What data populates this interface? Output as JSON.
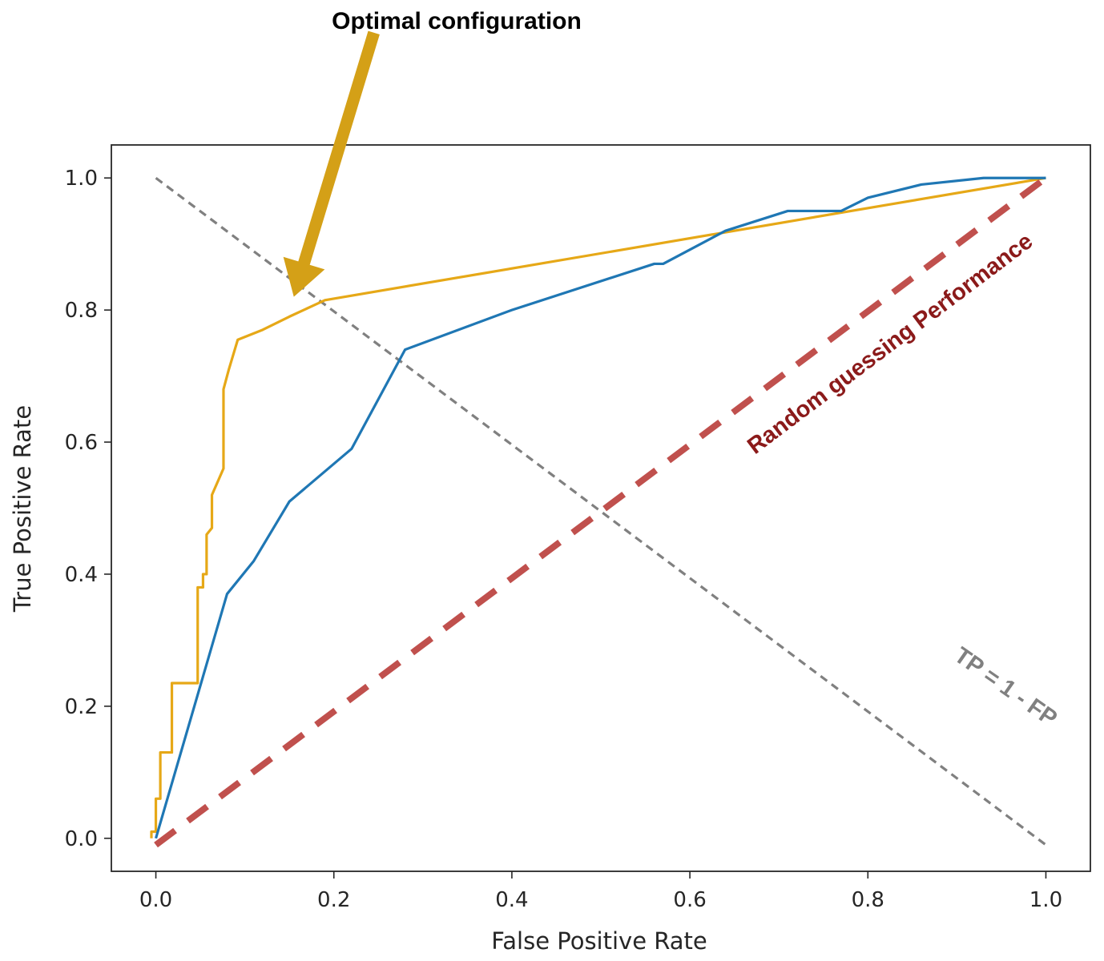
{
  "chart_data": {
    "type": "line",
    "title": "",
    "xlabel": "False Positive Rate",
    "ylabel": "True Positive Rate",
    "xlim": [
      -0.05,
      1.05
    ],
    "ylim": [
      -0.05,
      1.05
    ],
    "xticks": [
      "0.0",
      "0.2",
      "0.4",
      "0.6",
      "0.8",
      "1.0"
    ],
    "yticks": [
      "0.0",
      "0.2",
      "0.4",
      "0.6",
      "0.8",
      "1.0"
    ],
    "series": [
      {
        "name": "blue-roc",
        "color": "#1f77b4",
        "x": [
          0.0,
          0.08,
          0.11,
          0.15,
          0.22,
          0.28,
          0.4,
          0.56,
          0.57,
          0.64,
          0.71,
          0.77,
          0.8,
          0.86,
          0.93,
          1.0
        ],
        "y": [
          0.0,
          0.37,
          0.42,
          0.51,
          0.59,
          0.74,
          0.8,
          0.87,
          0.87,
          0.92,
          0.95,
          0.95,
          0.97,
          0.99,
          1.0,
          1.0
        ]
      },
      {
        "name": "orange-roc",
        "color": "#e6a817",
        "x": [
          -0.005,
          -0.005,
          0.0,
          0.0,
          0.005,
          0.005,
          0.01,
          0.01,
          0.018,
          0.018,
          0.047,
          0.047,
          0.053,
          0.053,
          0.057,
          0.057,
          0.063,
          0.063,
          0.076,
          0.076,
          0.082,
          0.092,
          0.12,
          0.15,
          0.19,
          1.0
        ],
        "y": [
          0.0,
          0.01,
          0.01,
          0.06,
          0.06,
          0.13,
          0.13,
          0.13,
          0.13,
          0.235,
          0.235,
          0.38,
          0.38,
          0.4,
          0.4,
          0.46,
          0.47,
          0.52,
          0.56,
          0.68,
          0.71,
          0.755,
          0.77,
          0.79,
          0.815,
          1.0
        ]
      },
      {
        "name": "random-guessing",
        "color": "#c0504d",
        "dash": "long",
        "x": [
          0.0,
          1.0
        ],
        "y": [
          -0.01,
          1.0
        ]
      },
      {
        "name": "tp-equals-1-minus-fp",
        "color": "#808080",
        "dash": "short",
        "x": [
          0.0,
          1.0
        ],
        "y": [
          1.0,
          -0.01
        ]
      }
    ],
    "annotations": [
      {
        "name": "optimal-config",
        "text": "Optimal  configuration",
        "color": "#000000",
        "arrow_color": "#d4a017",
        "target_x": 0.155,
        "target_y": 0.82,
        "tail_x": 0.245,
        "tail_y": 1.22
      },
      {
        "name": "random-guess-label",
        "text": "Random guessing Performance",
        "color": "#8b1a1a",
        "x": 0.83,
        "y": 0.74,
        "angle": -37
      },
      {
        "name": "tp-fp-label",
        "text": "TP = 1 - FP",
        "color": "#808080",
        "x": 0.95,
        "y": 0.22,
        "angle": 35
      }
    ]
  }
}
